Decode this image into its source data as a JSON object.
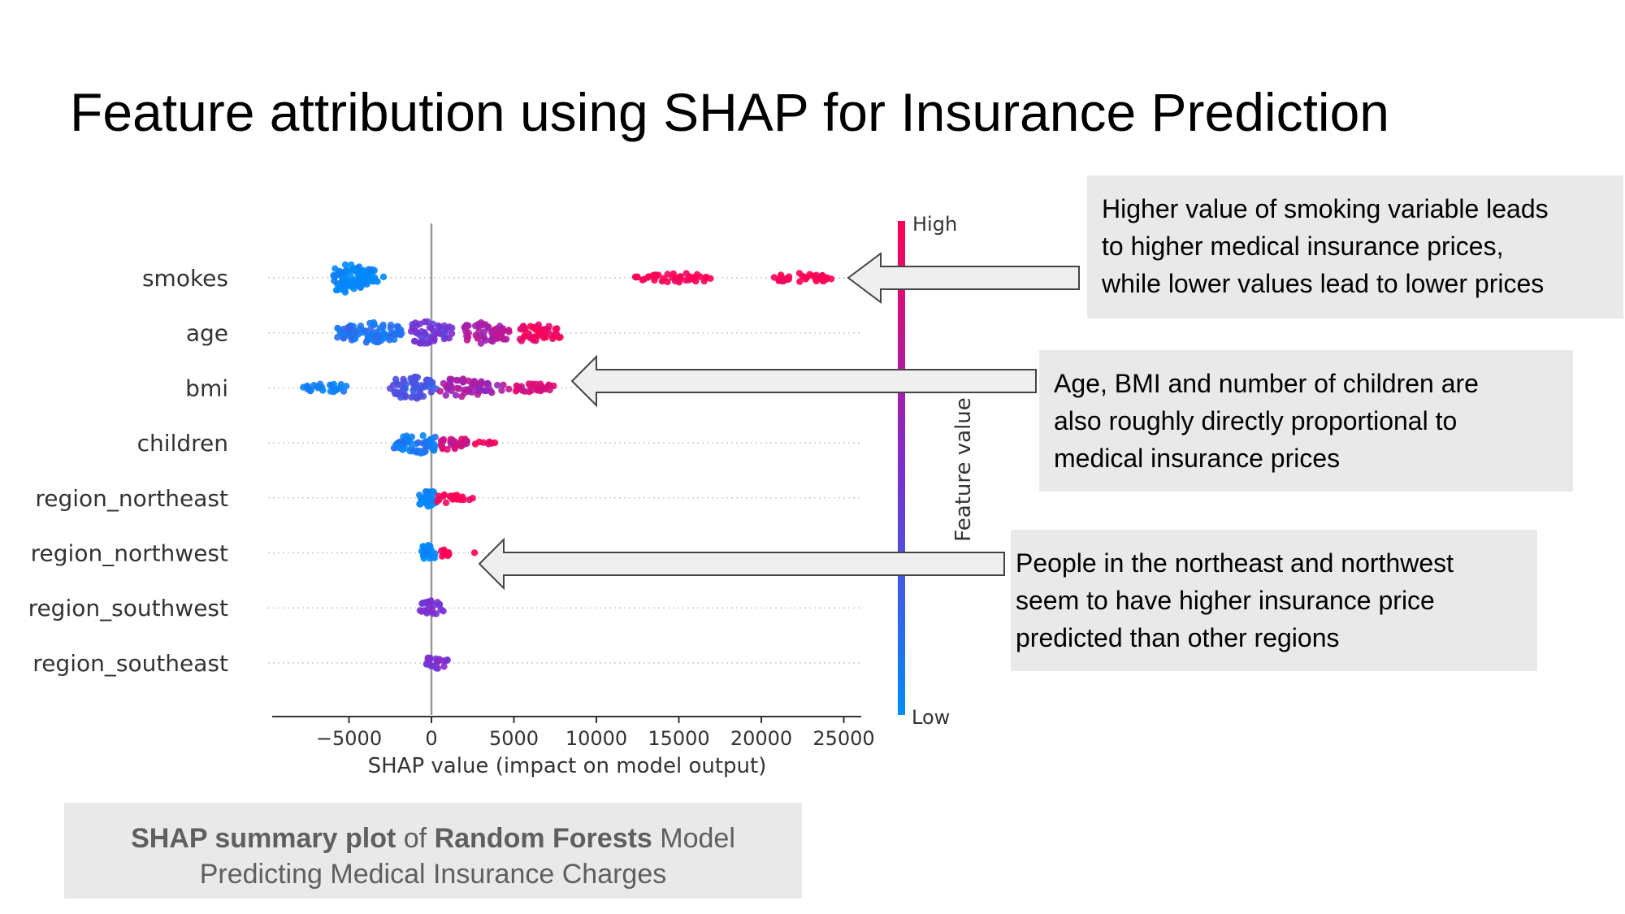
{
  "title": "Feature attribution using SHAP for Insurance Prediction",
  "callouts": {
    "smoking": [
      "Higher value of smoking variable leads",
      "to higher medical insurance prices,",
      "while lower values lead to lower prices"
    ],
    "age_bmi_children": [
      "Age, BMI and number of children are",
      "also roughly directly proportional to",
      "medical insurance prices"
    ],
    "region": [
      "People in the northeast and northwest",
      "seem to have higher insurance price",
      "predicted than other regions"
    ]
  },
  "caption": {
    "part1_bold": "SHAP summary plot",
    "part2": " of ",
    "part3_bold": "Random Forests",
    "part4": " Model",
    "line2": "Predicting Medical Insurance Charges"
  },
  "colors": {
    "high": "#ff0052",
    "low": "#008bfb",
    "callout_bg": "#e9e9e9",
    "axis": "#333333"
  },
  "chart_data": {
    "type": "scatter",
    "subtype": "shap-beeswarm",
    "xlabel": "SHAP value (impact on model output)",
    "xlim": [
      -9500,
      26500
    ],
    "x_ticks": [
      -5000,
      0,
      5000,
      10000,
      15000,
      20000,
      25000
    ],
    "x_tick_labels": [
      "−5000",
      "0",
      "5000",
      "10000",
      "15000",
      "20000",
      "25000"
    ],
    "colorbar": {
      "label": "Feature value",
      "high": "High",
      "low": "Low"
    },
    "features": [
      "smokes",
      "age",
      "bmi",
      "children",
      "region_northeast",
      "region_northwest",
      "region_southwest",
      "region_southeast"
    ],
    "series": [
      {
        "feature": "smokes",
        "clusters": [
          {
            "from": -6200,
            "to": -2800,
            "width": 36,
            "n": 90,
            "value": 0.0,
            "peak": -5200
          },
          {
            "from": 12000,
            "to": 17200,
            "width": 12,
            "n": 40,
            "value": 1.0,
            "peak": 15000
          },
          {
            "from": 20000,
            "to": 24500,
            "width": 12,
            "n": 36,
            "value": 1.0,
            "peak": 22500
          }
        ]
      },
      {
        "feature": "age",
        "clusters": [
          {
            "from": -5800,
            "to": -1500,
            "width": 26,
            "n": 80,
            "value": 0.12,
            "peak": -3500
          },
          {
            "from": -1500,
            "to": 1500,
            "width": 30,
            "n": 50,
            "value": 0.45,
            "peak": -500
          },
          {
            "from": 1500,
            "to": 5000,
            "width": 26,
            "n": 60,
            "value": 0.7,
            "peak": 3000
          },
          {
            "from": 5000,
            "to": 8200,
            "width": 24,
            "n": 45,
            "value": 0.95,
            "peak": 6000
          }
        ]
      },
      {
        "feature": "bmi",
        "clusters": [
          {
            "from": -8200,
            "to": -5000,
            "width": 12,
            "n": 24,
            "value": 0.05,
            "peak": -6200
          },
          {
            "from": -2600,
            "to": 500,
            "width": 30,
            "n": 60,
            "value": 0.3,
            "peak": -1200
          },
          {
            "from": 500,
            "to": 4500,
            "width": 24,
            "n": 55,
            "value": 0.65,
            "peak": 1500
          },
          {
            "from": 4500,
            "to": 7500,
            "width": 12,
            "n": 30,
            "value": 0.85,
            "peak": 6000
          }
        ]
      },
      {
        "feature": "children",
        "clusters": [
          {
            "from": -2600,
            "to": 400,
            "width": 26,
            "n": 55,
            "value": 0.1,
            "peak": -700
          },
          {
            "from": 400,
            "to": 2500,
            "width": 18,
            "n": 30,
            "value": 0.8,
            "peak": 1000
          },
          {
            "from": 2500,
            "to": 4000,
            "width": 4,
            "n": 8,
            "value": 0.95,
            "peak": 3000
          }
        ]
      },
      {
        "feature": "region_northeast",
        "clusters": [
          {
            "from": -800,
            "to": 300,
            "width": 24,
            "n": 30,
            "value": 0.0,
            "peak": -300
          },
          {
            "from": 300,
            "to": 2600,
            "width": 12,
            "n": 22,
            "value": 1.0,
            "peak": 900
          }
        ]
      },
      {
        "feature": "region_northwest",
        "clusters": [
          {
            "from": -700,
            "to": 300,
            "width": 24,
            "n": 26,
            "value": 0.0,
            "peak": -250
          },
          {
            "from": 300,
            "to": 1300,
            "width": 10,
            "n": 12,
            "value": 1.0,
            "peak": 700
          },
          {
            "from": 2500,
            "to": 2700,
            "width": 2,
            "n": 1,
            "value": 1.0,
            "peak": 2600
          }
        ]
      },
      {
        "feature": "region_southwest",
        "clusters": [
          {
            "from": -800,
            "to": 900,
            "width": 18,
            "n": 24,
            "value": 0.5,
            "peak": 0
          }
        ]
      },
      {
        "feature": "region_southeast",
        "clusters": [
          {
            "from": -500,
            "to": 1300,
            "width": 18,
            "n": 22,
            "value": 0.5,
            "peak": 0
          }
        ]
      }
    ]
  }
}
